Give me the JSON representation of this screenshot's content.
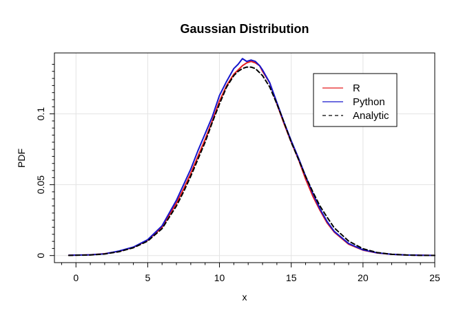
{
  "chart_data": {
    "type": "line",
    "title": "Gaussian Distribution",
    "xlabel": "x",
    "ylabel": "PDF",
    "xlim": [
      -1.5,
      25
    ],
    "ylim": [
      -0.005,
      0.143
    ],
    "xticks": [
      0,
      5,
      10,
      15,
      20,
      25
    ],
    "yticks": [
      0,
      0.05,
      0.1
    ],
    "xtick_labels": [
      "0",
      "5",
      "10",
      "15",
      "20",
      "25"
    ],
    "ytick_labels": [
      "0",
      "0.05",
      "0.1"
    ],
    "grid": true,
    "legend_position": "top-right",
    "series": [
      {
        "name": "R",
        "color": "#e41a1c",
        "dash": "solid",
        "x": [
          -0.5,
          1,
          2,
          3,
          4,
          5,
          6,
          7,
          7.5,
          8,
          8.5,
          9,
          9.5,
          10,
          10.5,
          11,
          11.3,
          11.6,
          11.9,
          12.2,
          12.5,
          12.8,
          13,
          13.5,
          14,
          14.5,
          15,
          15.5,
          16,
          16.5,
          17,
          17.5,
          18,
          19,
          20,
          21,
          22,
          23,
          24,
          25
        ],
        "y": [
          0.0002,
          0.0005,
          0.0013,
          0.003,
          0.0058,
          0.0108,
          0.02,
          0.037,
          0.047,
          0.058,
          0.07,
          0.082,
          0.095,
          0.109,
          0.12,
          0.128,
          0.131,
          0.134,
          0.136,
          0.137,
          0.136,
          0.134,
          0.13,
          0.122,
          0.107,
          0.093,
          0.08,
          0.068,
          0.054,
          0.042,
          0.032,
          0.023,
          0.0165,
          0.008,
          0.0038,
          0.0018,
          0.0009,
          0.0004,
          0.0002,
          0.0001
        ]
      },
      {
        "name": "Python",
        "color": "#1515cc",
        "dash": "solid",
        "x": [
          -0.5,
          1,
          2,
          3,
          4,
          5,
          6,
          7,
          7.5,
          8,
          8.5,
          9,
          9.5,
          10,
          10.5,
          11,
          11.3,
          11.6,
          11.9,
          12.2,
          12.5,
          12.8,
          13,
          13.5,
          14,
          14.5,
          15,
          15.5,
          16,
          16.5,
          17,
          17.5,
          18,
          19,
          20,
          21,
          22,
          23,
          24,
          25
        ],
        "y": [
          0.0002,
          0.0005,
          0.0012,
          0.0032,
          0.006,
          0.0112,
          0.021,
          0.039,
          0.05,
          0.061,
          0.074,
          0.086,
          0.098,
          0.113,
          0.123,
          0.132,
          0.135,
          0.139,
          0.137,
          0.138,
          0.137,
          0.134,
          0.131,
          0.122,
          0.108,
          0.094,
          0.081,
          0.069,
          0.056,
          0.044,
          0.033,
          0.024,
          0.017,
          0.0085,
          0.004,
          0.0019,
          0.0009,
          0.0004,
          0.0002,
          0.0001
        ]
      },
      {
        "name": "Analytic",
        "color": "#000000",
        "dash": "dashed",
        "x": [
          -0.5,
          1,
          2,
          3,
          4,
          5,
          6,
          7,
          7.5,
          8,
          8.5,
          9,
          9.5,
          10,
          10.5,
          11,
          11.3,
          11.6,
          11.9,
          12.2,
          12.5,
          12.8,
          13,
          13.5,
          14,
          14.5,
          15,
          15.5,
          16,
          16.5,
          17,
          17.5,
          18,
          19,
          20,
          21,
          22,
          23,
          24,
          25
        ],
        "y": [
          0.0001,
          0.0004,
          0.0011,
          0.0027,
          0.0055,
          0.0102,
          0.019,
          0.035,
          0.045,
          0.056,
          0.068,
          0.08,
          0.094,
          0.107,
          0.119,
          0.127,
          0.13,
          0.132,
          0.133,
          0.133,
          0.132,
          0.129,
          0.127,
          0.119,
          0.107,
          0.094,
          0.08,
          0.068,
          0.056,
          0.045,
          0.035,
          0.027,
          0.0195,
          0.0102,
          0.0048,
          0.0021,
          0.0009,
          0.0004,
          0.0001,
          0.0001
        ]
      }
    ]
  }
}
